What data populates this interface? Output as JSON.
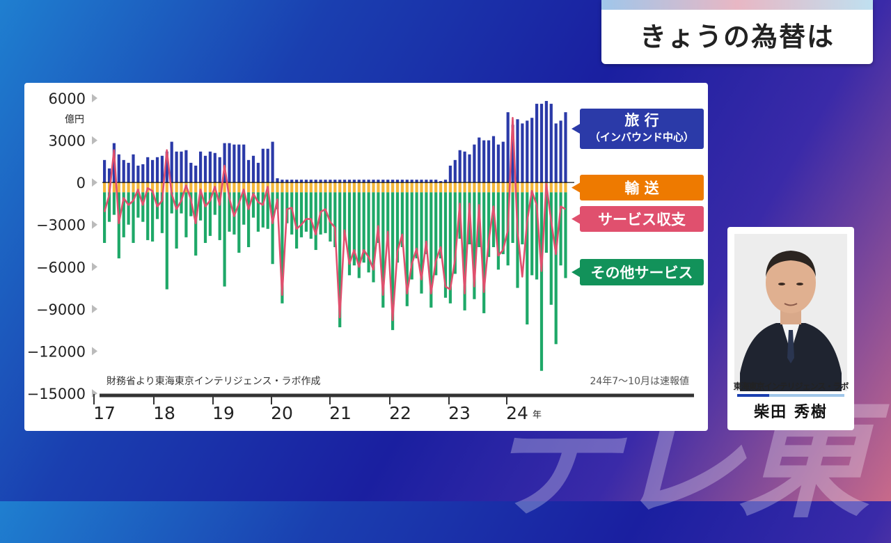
{
  "header": {
    "title": "きょうの為替は"
  },
  "watermark": "テレ東",
  "chart": {
    "source_note": "財務省より東海東京インテリジェンス・ラボ作成",
    "prelim_note": "24年7〜10月は速報値",
    "y_unit": "億円",
    "y_ticks": [
      "6000",
      "3000",
      "0",
      "−3000",
      "−6000",
      "−9000",
      "−12000",
      "−15000"
    ],
    "x_ticks": [
      "17",
      "18",
      "19",
      "20",
      "21",
      "22",
      "23",
      "24"
    ],
    "x_last_suffix": "年",
    "legend": {
      "travel_line1": "旅 行",
      "travel_line2": "（インバウンド中心）",
      "transport": "輸 送",
      "services": "サービス収支",
      "other": "その他サービス"
    },
    "colors": {
      "travel": "#2b3aa8",
      "transport": "#f2b63a",
      "other": "#1ea868",
      "services": "#e0506e",
      "legend_transport": "#ee7a00",
      "legend_other": "#12925a"
    }
  },
  "chart_data": {
    "type": "bar",
    "ylim": [
      -15000,
      6000
    ],
    "x_start": "2017-01",
    "series": [
      {
        "name": "旅 行",
        "values": [
          1600,
          1000,
          2800,
          2000,
          1600,
          1400,
          2000,
          1200,
          1300,
          1800,
          1600,
          1800,
          1900,
          2200,
          2900,
          2200,
          2200,
          2300,
          1400,
          1200,
          2200,
          1900,
          2200,
          2100,
          1800,
          2800,
          2800,
          2700,
          2700,
          2700,
          1600,
          1900,
          1400,
          2400,
          2400,
          2900,
          300,
          200,
          200,
          200,
          200,
          200,
          200,
          200,
          200,
          200,
          200,
          200,
          200,
          200,
          200,
          200,
          200,
          200,
          200,
          200,
          200,
          200,
          200,
          200,
          200,
          200,
          200,
          200,
          200,
          200,
          200,
          200,
          200,
          200,
          100,
          200,
          1200,
          1600,
          2300,
          2200,
          2000,
          2700,
          3200,
          3000,
          3000,
          3300,
          2700,
          2900,
          5000,
          4100,
          4500,
          4200,
          4400,
          4600,
          5600,
          5600,
          5800,
          5600,
          4200,
          4400,
          5000
        ]
      },
      {
        "name": "輸 送",
        "values": [
          -700,
          -700,
          -700,
          -700,
          -700,
          -700,
          -700,
          -700,
          -700,
          -700,
          -700,
          -700,
          -700,
          -700,
          -700,
          -700,
          -700,
          -700,
          -700,
          -700,
          -700,
          -700,
          -700,
          -700,
          -700,
          -700,
          -700,
          -700,
          -700,
          -700,
          -700,
          -700,
          -700,
          -700,
          -700,
          -700,
          -700,
          -700,
          -700,
          -700,
          -700,
          -700,
          -700,
          -700,
          -700,
          -700,
          -700,
          -700,
          -700,
          -700,
          -700,
          -700,
          -700,
          -700,
          -700,
          -700,
          -700,
          -700,
          -700,
          -700,
          -700,
          -700,
          -700,
          -700,
          -700,
          -700,
          -700,
          -700,
          -700,
          -700,
          -700,
          -700,
          -700,
          -700,
          -700,
          -700,
          -700,
          -700,
          -700,
          -700,
          -700,
          -700,
          -700,
          -700,
          -700,
          -700,
          -700,
          -700,
          -700,
          -700,
          -700,
          -700,
          -700,
          -700,
          -700,
          -700,
          -700
        ]
      },
      {
        "name": "その他サービス",
        "values": [
          -3600,
          -2100,
          -1600,
          -4700,
          -3200,
          -2300,
          -3600,
          -1800,
          -2100,
          -3400,
          -3500,
          -1900,
          -2900,
          -6900,
          -1500,
          -4000,
          -1500,
          -3200,
          -1700,
          -4500,
          -2000,
          -3600,
          -3100,
          -1600,
          -3400,
          -6700,
          -2800,
          -3000,
          -4300,
          -2300,
          -3900,
          -1800,
          -2800,
          -2500,
          -2600,
          -5100,
          -1200,
          -7900,
          -2200,
          -3000,
          -4000,
          -3200,
          -2800,
          -3300,
          -4100,
          -3000,
          -2900,
          -3500,
          -3900,
          -9600,
          -3400,
          -5900,
          -5200,
          -6100,
          -5000,
          -5700,
          -6400,
          -3600,
          -8200,
          -3800,
          -9800,
          -5000,
          -3900,
          -8100,
          -6200,
          -4700,
          -7200,
          -4400,
          -8200,
          -5900,
          -4700,
          -7500,
          -7900,
          -5800,
          -3300,
          -8400,
          -3700,
          -7600,
          -3900,
          -8600,
          -4600,
          -3900,
          -5500,
          -4400,
          -5200,
          -3600,
          -6800,
          -3700,
          -9400,
          -5900,
          -6200,
          -12700,
          -4300,
          -8000,
          -10800,
          -5200,
          -6100
        ]
      },
      {
        "name": "サービス収支",
        "values": [
          -2100,
          -900,
          2300,
          -2900,
          -1100,
          -1600,
          -1300,
          -500,
          -1600,
          -400,
          -600,
          -1700,
          -1300,
          2300,
          -800,
          -1900,
          -1300,
          -200,
          -1200,
          -2900,
          -500,
          -1700,
          -1300,
          -300,
          -1600,
          1200,
          -1100,
          -2400,
          -1500,
          -500,
          -1900,
          -800,
          -1400,
          -1600,
          -300,
          -2900,
          -1200,
          -8000,
          -1900,
          -1800,
          -3300,
          -3000,
          -2600,
          -2600,
          -3700,
          -2100,
          -1900,
          -2800,
          -3200,
          -9600,
          -3400,
          -5800,
          -4800,
          -6000,
          -4800,
          -5300,
          -6200,
          -3100,
          -8000,
          -3500,
          -9800,
          -4900,
          -3700,
          -7900,
          -5800,
          -4700,
          -6900,
          -4200,
          -7900,
          -5600,
          -4600,
          -7400,
          -7600,
          -5500,
          -1500,
          -7900,
          -1500,
          -7400,
          -1600,
          -7800,
          -4200,
          -1700,
          -5200,
          -4800,
          -3400,
          4600,
          -3400,
          -6700,
          -2800,
          -600,
          -1600,
          -6300,
          -100,
          -2700,
          -5100,
          -1700,
          -1900
        ]
      }
    ]
  },
  "presenter": {
    "org": "東海東京インテリジェンス・ラボ",
    "name": "柴田 秀樹"
  }
}
